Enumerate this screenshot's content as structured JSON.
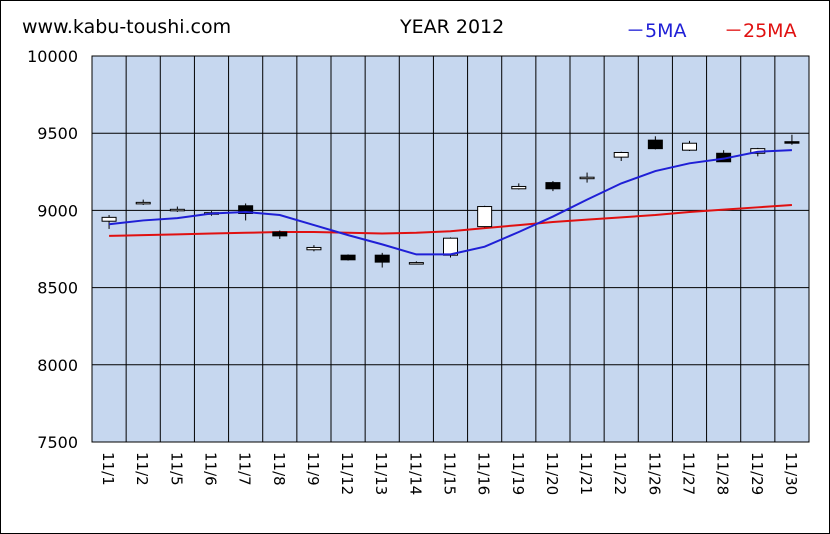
{
  "header": {
    "site": "www.kabu-toushi.com",
    "title": "YEAR 2012",
    "legend_5ma": "－5MA",
    "legend_25ma": "－25MA"
  },
  "colors": {
    "plot_bg": "#c6d7ef",
    "ma5": "#1f1fd6",
    "ma25": "#e01010",
    "up_candle": "#ffffff",
    "down_candle": "#000000"
  },
  "chart_data": {
    "type": "candlestick",
    "ylim": [
      7500,
      10000
    ],
    "yticks": [
      7500,
      8000,
      8500,
      9000,
      9500,
      10000
    ],
    "categories": [
      "11/1",
      "11/2",
      "11/5",
      "11/6",
      "11/7",
      "11/8",
      "11/9",
      "11/12",
      "11/13",
      "11/14",
      "11/15",
      "11/16",
      "11/19",
      "11/20",
      "11/21",
      "11/22",
      "11/26",
      "11/27",
      "11/28",
      "11/29",
      "11/30"
    ],
    "candles": [
      {
        "open": 8930,
        "close": 8955,
        "high": 8970,
        "low": 8880
      },
      {
        "open": 9045,
        "close": 9052,
        "high": 9070,
        "low": 9035
      },
      {
        "open": 8998,
        "close": 9007,
        "high": 9025,
        "low": 8990
      },
      {
        "open": 8975,
        "close": 8985,
        "high": 8995,
        "low": 8965
      },
      {
        "open": 9030,
        "close": 8980,
        "high": 9045,
        "low": 8935
      },
      {
        "open": 8860,
        "close": 8835,
        "high": 8870,
        "low": 8815
      },
      {
        "open": 8745,
        "close": 8760,
        "high": 8775,
        "low": 8735
      },
      {
        "open": 8710,
        "close": 8680,
        "high": 8715,
        "low": 8675
      },
      {
        "open": 8710,
        "close": 8665,
        "high": 8725,
        "low": 8630
      },
      {
        "open": 8662,
        "close": 8662,
        "high": 8670,
        "low": 8655
      },
      {
        "open": 8710,
        "close": 8820,
        "high": 8825,
        "low": 8695
      },
      {
        "open": 8895,
        "close": 9025,
        "high": 9030,
        "low": 8890
      },
      {
        "open": 9140,
        "close": 9155,
        "high": 9175,
        "low": 9135
      },
      {
        "open": 9180,
        "close": 9140,
        "high": 9190,
        "low": 9125
      },
      {
        "open": 9215,
        "close": 9215,
        "high": 9245,
        "low": 9180
      },
      {
        "open": 9345,
        "close": 9375,
        "high": 9380,
        "low": 9320
      },
      {
        "open": 9455,
        "close": 9400,
        "high": 9480,
        "low": 9395
      },
      {
        "open": 9390,
        "close": 9435,
        "high": 9450,
        "low": 9385
      },
      {
        "open": 9370,
        "close": 9315,
        "high": 9390,
        "low": 9315
      },
      {
        "open": 9370,
        "close": 9400,
        "high": 9405,
        "low": 9350
      },
      {
        "open": 9445,
        "close": 9440,
        "high": 9490,
        "low": 9425
      }
    ],
    "series": [
      {
        "name": "5MA",
        "values": [
          8910,
          8935,
          8950,
          8980,
          8990,
          8970,
          8905,
          8840,
          8780,
          8715,
          8715,
          8765,
          8860,
          8960,
          9070,
          9175,
          9255,
          9305,
          9335,
          9380,
          9390
        ]
      },
      {
        "name": "25MA",
        "values": [
          8835,
          8840,
          8845,
          8850,
          8855,
          8860,
          8860,
          8855,
          8850,
          8855,
          8865,
          8885,
          8905,
          8925,
          8940,
          8955,
          8970,
          8990,
          9005,
          9020,
          9035
        ]
      }
    ],
    "grid": true
  }
}
